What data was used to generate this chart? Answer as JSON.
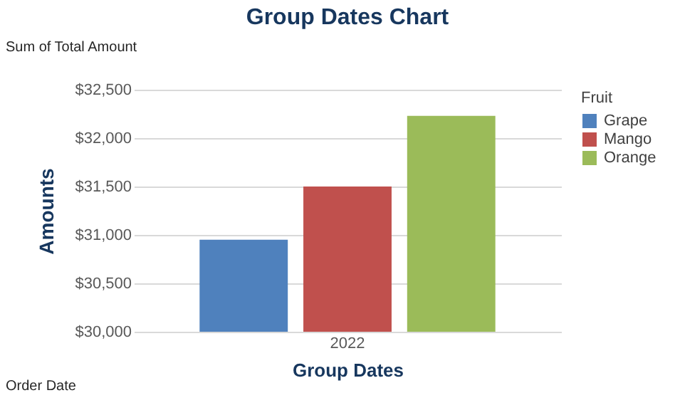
{
  "chart_data": {
    "type": "bar",
    "title": "Group Dates Chart",
    "xlabel": "Group Dates",
    "ylabel": "Amounts",
    "legend_title": "Fruit",
    "categories": [
      "2022"
    ],
    "series": [
      {
        "name": "Grape",
        "color": "#4f81bd",
        "values": [
          30950
        ]
      },
      {
        "name": "Mango",
        "color": "#c0504d",
        "values": [
          31500
        ]
      },
      {
        "name": "Orange",
        "color": "#9bbb59",
        "values": [
          32230
        ]
      }
    ],
    "ylim": [
      30000,
      32500
    ],
    "yticks": [
      {
        "value": 30000,
        "label": "$30,000"
      },
      {
        "value": 30500,
        "label": "$30,500"
      },
      {
        "value": 31000,
        "label": "$31,000"
      },
      {
        "value": 31500,
        "label": "$31,500"
      },
      {
        "value": 32000,
        "label": "$32,000"
      },
      {
        "value": 32500,
        "label": "$32,500"
      }
    ],
    "grid": "y",
    "legend": "right",
    "annotations": [
      "Sum of Total Amount",
      "Order Date"
    ]
  }
}
